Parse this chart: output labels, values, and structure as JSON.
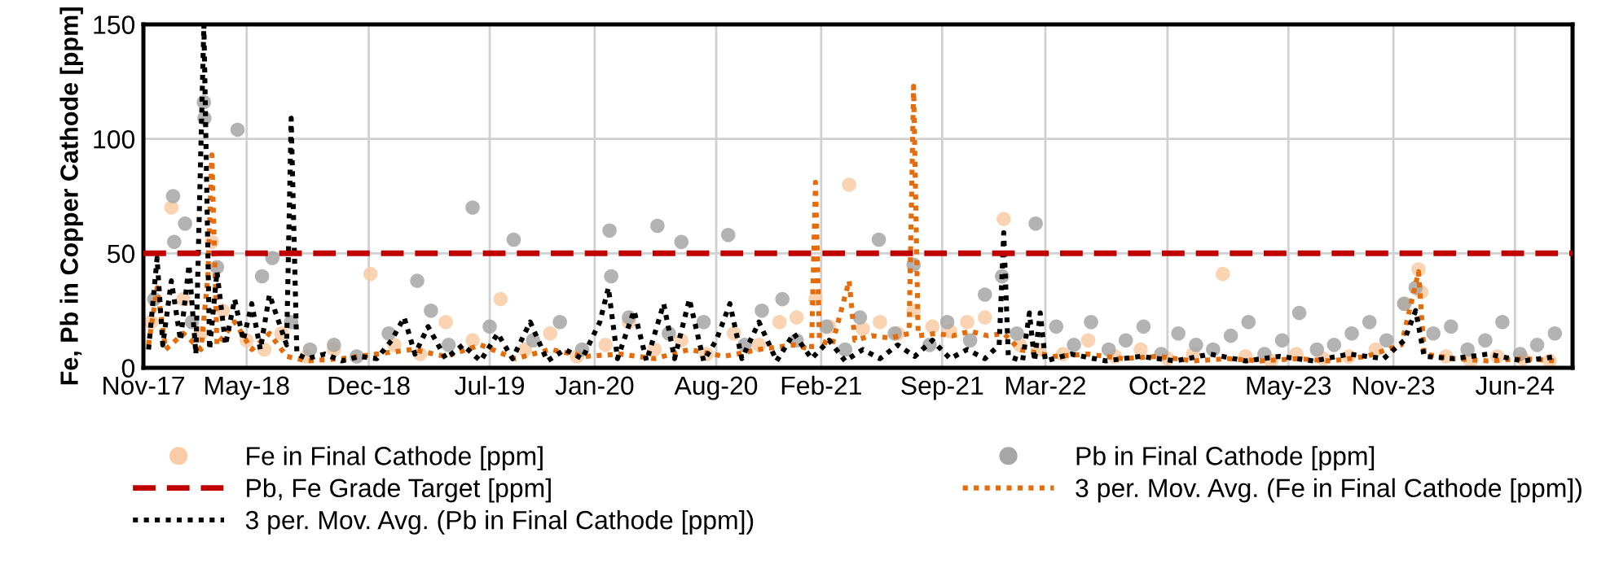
{
  "chart_data": {
    "type": "scatter",
    "ylabel": "Fe, Pb in Copper Cathode [ppm]",
    "ylim": [
      0,
      150
    ],
    "yticks": [
      0,
      50,
      100,
      150
    ],
    "xlim": [
      "2017-11-01",
      "2024-09-10"
    ],
    "xticks": [
      {
        "value": "2017-11-01",
        "label": "Nov-17"
      },
      {
        "value": "2018-05-01",
        "label": "May-18"
      },
      {
        "value": "2018-12-01",
        "label": "Dec-18"
      },
      {
        "value": "2019-07-01",
        "label": "Jul-19"
      },
      {
        "value": "2020-01-01",
        "label": "Jan-20"
      },
      {
        "value": "2020-08-01",
        "label": "Aug-20"
      },
      {
        "value": "2021-02-01",
        "label": "Feb-21"
      },
      {
        "value": "2021-09-01",
        "label": "Sep-21"
      },
      {
        "value": "2022-03-01",
        "label": "Mar-22"
      },
      {
        "value": "2022-10-01",
        "label": "Oct-22"
      },
      {
        "value": "2023-05-01",
        "label": "May-23"
      },
      {
        "value": "2023-11-01",
        "label": "Nov-23"
      },
      {
        "value": "2024-06-01",
        "label": "Jun-24"
      }
    ],
    "grid": true,
    "legend": "bottom",
    "marker": "circle",
    "ref_lines": [
      {
        "axis": "y",
        "value": 50,
        "label": "Pb, Fe Grade Target [ppm]",
        "color": "#c00000",
        "line_style": "dashed"
      }
    ],
    "series": [
      {
        "name": "Fe in Final Cathode [ppm]",
        "color": "#f9cba6",
        "x": [
          "2017-11-15",
          "2017-12-20",
          "2018-01-10",
          "2018-02-10",
          "2018-03-01",
          "2018-03-20",
          "2018-05-01",
          "2018-06-01",
          "2018-07-01",
          "2018-08-15",
          "2018-10-01",
          "2018-12-04",
          "2019-01-15",
          "2019-03-01",
          "2019-04-15",
          "2019-06-01",
          "2019-07-20",
          "2019-09-01",
          "2019-10-15",
          "2019-12-01",
          "2020-01-20",
          "2020-03-01",
          "2020-04-15",
          "2020-06-01",
          "2020-07-15",
          "2020-09-01",
          "2020-10-15",
          "2020-11-20",
          "2020-12-20",
          "2021-01-22",
          "2021-02-15",
          "2021-03-22",
          "2021-04-15",
          "2021-05-15",
          "2021-06-15",
          "2021-07-13",
          "2021-08-15",
          "2021-09-15",
          "2021-10-15",
          "2021-11-15",
          "2021-12-18",
          "2022-01-15",
          "2022-02-15",
          "2022-04-01",
          "2022-05-15",
          "2022-07-01",
          "2022-08-15",
          "2022-10-01",
          "2022-11-15",
          "2023-01-06",
          "2023-02-15",
          "2023-04-01",
          "2023-05-15",
          "2023-07-01",
          "2023-08-15",
          "2023-10-01",
          "2023-11-20",
          "2023-12-15",
          "2023-12-20",
          "2024-02-01",
          "2024-03-15",
          "2024-05-01",
          "2024-06-15",
          "2024-08-01"
        ],
        "values": [
          20,
          70,
          30,
          15,
          55,
          25,
          12,
          8,
          15,
          5,
          8,
          41,
          10,
          6,
          20,
          12,
          30,
          8,
          15,
          5,
          10,
          20,
          8,
          12,
          6,
          15,
          10,
          20,
          22,
          30,
          18,
          80,
          17,
          20,
          15,
          25,
          18,
          16,
          20,
          22,
          65,
          10,
          8,
          6,
          12,
          5,
          8,
          4,
          6,
          41,
          5,
          3,
          6,
          4,
          5,
          8,
          28,
          43,
          33,
          5,
          3,
          5,
          4,
          3
        ]
      },
      {
        "name": "Pb in Final Cathode [ppm]",
        "color": "#a6a6a6",
        "x": [
          "2017-11-20",
          "2017-12-23",
          "2017-12-25",
          "2018-01-13",
          "2018-01-25",
          "2018-02-15",
          "2018-02-16",
          "2018-03-10",
          "2018-04-15",
          "2018-05-28",
          "2018-06-15",
          "2018-07-18",
          "2018-08-20",
          "2018-10-01",
          "2018-11-10",
          "2019-01-05",
          "2019-02-24",
          "2019-03-20",
          "2019-04-20",
          "2019-06-01",
          "2019-07-01",
          "2019-08-12",
          "2019-09-15",
          "2019-11-01",
          "2019-12-10",
          "2020-01-27",
          "2020-01-30",
          "2020-03-01",
          "2020-04-20",
          "2020-05-10",
          "2020-06-01",
          "2020-07-10",
          "2020-08-22",
          "2020-09-20",
          "2020-10-20",
          "2020-11-25",
          "2020-12-20",
          "2021-02-10",
          "2021-03-15",
          "2021-04-10",
          "2021-05-13",
          "2021-06-10",
          "2021-07-13",
          "2021-08-10",
          "2021-09-10",
          "2021-10-20",
          "2021-11-15",
          "2021-12-15",
          "2022-01-10",
          "2022-02-12",
          "2022-03-20",
          "2022-04-20",
          "2022-05-20",
          "2022-06-20",
          "2022-07-20",
          "2022-08-20",
          "2022-09-20",
          "2022-10-20",
          "2022-11-20",
          "2022-12-20",
          "2023-01-20",
          "2023-02-20",
          "2023-03-20",
          "2023-04-20",
          "2023-05-20",
          "2023-06-20",
          "2023-07-20",
          "2023-08-20",
          "2023-09-20",
          "2023-10-20",
          "2023-11-20",
          "2023-12-10",
          "2024-01-10",
          "2024-02-10",
          "2024-03-10",
          "2024-04-10",
          "2024-05-10",
          "2024-06-10",
          "2024-07-10",
          "2024-08-10"
        ],
        "values": [
          30,
          75,
          55,
          63,
          20,
          116,
          109,
          44,
          104,
          40,
          48,
          20,
          8,
          10,
          5,
          15,
          38,
          25,
          10,
          70,
          18,
          56,
          12,
          20,
          8,
          60,
          40,
          22,
          62,
          15,
          55,
          20,
          58,
          10,
          25,
          30,
          12,
          18,
          8,
          22,
          56,
          15,
          45,
          10,
          20,
          12,
          32,
          40,
          15,
          63,
          18,
          10,
          20,
          8,
          12,
          18,
          6,
          15,
          10,
          8,
          14,
          20,
          6,
          12,
          24,
          8,
          10,
          15,
          20,
          12,
          28,
          35,
          15,
          18,
          8,
          12,
          20,
          6,
          10,
          15
        ]
      },
      {
        "name": "3 per. Mov. Avg. (Fe in Final Cathode [ppm])",
        "type": "line",
        "color": "#e46c0a",
        "line_style": "dotted",
        "marker": "none",
        "x": [
          "2017-11-10",
          "2017-11-25",
          "2017-12-10",
          "2018-01-10",
          "2018-02-10",
          "2018-02-22",
          "2018-03-01",
          "2018-03-10",
          "2018-04-10",
          "2018-05-10",
          "2018-06-10",
          "2018-07-10",
          "2018-08-15",
          "2018-10-15",
          "2018-12-15",
          "2019-02-15",
          "2019-04-15",
          "2019-06-15",
          "2019-08-15",
          "2019-10-15",
          "2019-12-15",
          "2020-02-15",
          "2020-04-15",
          "2020-06-15",
          "2020-08-15",
          "2020-10-15",
          "2020-12-15",
          "2021-01-15",
          "2021-01-22",
          "2021-01-29",
          "2021-02-20",
          "2021-03-22",
          "2021-04-01",
          "2021-05-01",
          "2021-06-01",
          "2021-07-05",
          "2021-07-13",
          "2021-07-21",
          "2021-08-20",
          "2021-09-20",
          "2021-10-20",
          "2021-11-20",
          "2021-12-18",
          "2022-01-15",
          "2022-03-15",
          "2022-05-15",
          "2022-07-15",
          "2022-09-15",
          "2022-11-15",
          "2023-01-15",
          "2023-03-15",
          "2023-05-15",
          "2023-07-15",
          "2023-09-15",
          "2023-11-15",
          "2023-12-15",
          "2023-12-25",
          "2024-02-15",
          "2024-04-15",
          "2024-06-15",
          "2024-08-15"
        ],
        "values": [
          10,
          35,
          8,
          15,
          8,
          40,
          93,
          10,
          20,
          8,
          15,
          5,
          3,
          4,
          6,
          8,
          5,
          10,
          4,
          8,
          5,
          6,
          4,
          8,
          5,
          8,
          10,
          8,
          81,
          12,
          10,
          38,
          12,
          14,
          13,
          15,
          123,
          14,
          15,
          14,
          16,
          14,
          15,
          8,
          5,
          6,
          4,
          5,
          3,
          4,
          3,
          4,
          3,
          5,
          10,
          42,
          6,
          4,
          3,
          4,
          3
        ]
      },
      {
        "name": "3 per. Mov. Avg. (Pb in Final Cathode [ppm])",
        "type": "line",
        "color": "#000000",
        "line_style": "dotted",
        "marker": "none",
        "x": [
          "2017-11-10",
          "2017-11-25",
          "2017-12-05",
          "2017-12-20",
          "2018-01-05",
          "2018-01-20",
          "2018-02-01",
          "2018-02-15",
          "2018-02-25",
          "2018-03-10",
          "2018-03-25",
          "2018-04-10",
          "2018-04-25",
          "2018-05-10",
          "2018-05-25",
          "2018-06-10",
          "2018-07-10",
          "2018-07-18",
          "2018-07-28",
          "2018-08-15",
          "2018-09-15",
          "2018-10-15",
          "2018-11-15",
          "2018-12-15",
          "2019-01-10",
          "2019-02-01",
          "2019-02-20",
          "2019-03-15",
          "2019-04-15",
          "2019-05-15",
          "2019-06-15",
          "2019-07-15",
          "2019-08-10",
          "2019-09-10",
          "2019-10-10",
          "2019-11-10",
          "2019-12-10",
          "2020-01-10",
          "2020-01-25",
          "2020-02-10",
          "2020-03-10",
          "2020-04-01",
          "2020-05-01",
          "2020-05-20",
          "2020-06-15",
          "2020-07-10",
          "2020-08-01",
          "2020-08-25",
          "2020-09-15",
          "2020-10-15",
          "2020-11-15",
          "2020-12-15",
          "2021-01-15",
          "2021-02-15",
          "2021-03-15",
          "2021-04-15",
          "2021-05-15",
          "2021-06-15",
          "2021-07-15",
          "2021-08-15",
          "2021-09-15",
          "2021-10-15",
          "2021-11-15",
          "2021-12-10",
          "2021-12-18",
          "2021-12-26",
          "2022-01-20",
          "2022-02-01",
          "2022-02-10",
          "2022-02-20",
          "2022-03-01",
          "2022-04-15",
          "2022-06-15",
          "2022-08-15",
          "2022-10-15",
          "2022-12-15",
          "2023-02-15",
          "2023-04-15",
          "2023-06-15",
          "2023-08-15",
          "2023-10-15",
          "2023-11-20",
          "2023-12-10",
          "2023-12-25",
          "2024-02-15",
          "2024-04-15",
          "2024-06-15",
          "2024-08-15"
        ],
        "values": [
          8,
          48,
          10,
          38,
          12,
          45,
          6,
          150,
          8,
          42,
          10,
          30,
          12,
          28,
          8,
          32,
          10,
          109,
          6,
          4,
          6,
          3,
          5,
          4,
          12,
          22,
          6,
          18,
          4,
          10,
          3,
          15,
          4,
          20,
          3,
          8,
          4,
          20,
          35,
          4,
          25,
          3,
          28,
          4,
          30,
          3,
          12,
          28,
          4,
          20,
          3,
          15,
          4,
          12,
          3,
          8,
          4,
          10,
          5,
          12,
          4,
          8,
          4,
          10,
          59,
          5,
          3,
          24,
          3,
          24,
          3,
          6,
          3,
          5,
          3,
          6,
          3,
          5,
          3,
          6,
          4,
          12,
          25,
          5,
          4,
          6,
          3,
          5
        ]
      }
    ]
  }
}
